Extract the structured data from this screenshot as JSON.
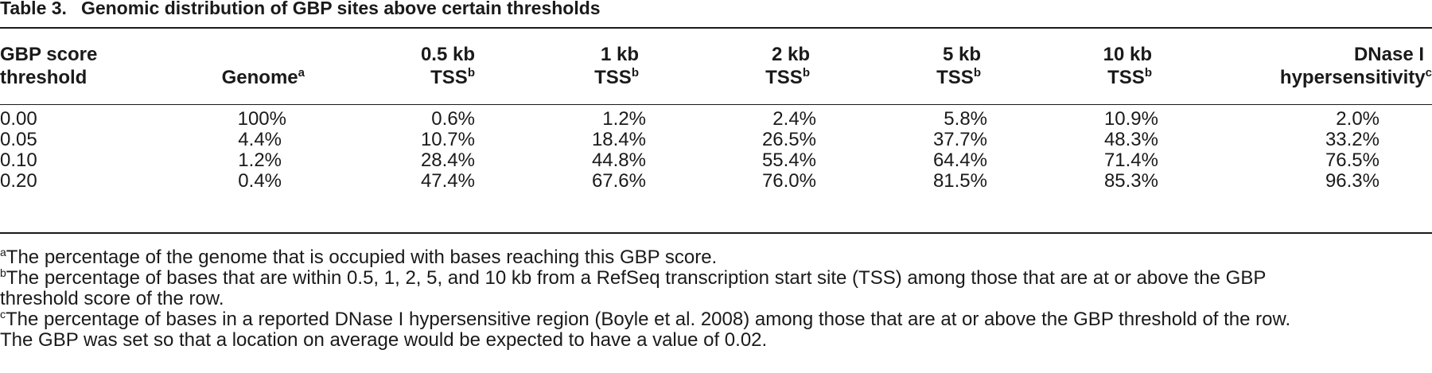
{
  "caption": {
    "label": "Table 3.",
    "title": "Genomic distribution of GBP sites above certain thresholds"
  },
  "headers": {
    "threshold": [
      "GBP score",
      "threshold"
    ],
    "genome": {
      "text": "Genome",
      "note": "a"
    },
    "tss05": {
      "line1": "0.5 kb",
      "line2": "TSS",
      "note": "b"
    },
    "tss1": {
      "line1": "1 kb",
      "line2": "TSS",
      "note": "b"
    },
    "tss2": {
      "line1": "2 kb",
      "line2": "TSS",
      "note": "b"
    },
    "tss5": {
      "line1": "5 kb",
      "line2": "TSS",
      "note": "b"
    },
    "tss10": {
      "line1": "10 kb",
      "line2": "TSS",
      "note": "b"
    },
    "dnase": {
      "line1": "DNase I",
      "line2": "hypersensitivity",
      "note": "c"
    }
  },
  "rows": [
    {
      "threshold": "0.00",
      "genome": "100%",
      "tss05": "0.6%",
      "tss1": "1.2%",
      "tss2": "2.4%",
      "tss5": "5.8%",
      "tss10": "10.9%",
      "dnase": "2.0%"
    },
    {
      "threshold": "0.05",
      "genome": "4.4%",
      "tss05": "10.7%",
      "tss1": "18.4%",
      "tss2": "26.5%",
      "tss5": "37.7%",
      "tss10": "48.3%",
      "dnase": "33.2%"
    },
    {
      "threshold": "0.10",
      "genome": "1.2%",
      "tss05": "28.4%",
      "tss1": "44.8%",
      "tss2": "55.4%",
      "tss5": "64.4%",
      "tss10": "71.4%",
      "dnase": "76.5%"
    },
    {
      "threshold": "0.20",
      "genome": "0.4%",
      "tss05": "47.4%",
      "tss1": "67.6%",
      "tss2": "76.0%",
      "tss5": "81.5%",
      "tss10": "85.3%",
      "dnase": "96.3%"
    }
  ],
  "footnotes": [
    {
      "mark": "a",
      "text": "The percentage of the genome that is occupied with bases reaching this GBP score."
    },
    {
      "mark": "b",
      "text": "The percentage of bases that are within 0.5, 1, 2, 5, and 10 kb from a RefSeq transcription start site (TSS) among those that are at or above the GBP"
    },
    {
      "mark": "",
      "text": "threshold score of the row."
    },
    {
      "mark": "c",
      "text": "The percentage of bases in a reported DNase I hypersensitive region (Boyle et al. 2008) among those that are at or above the GBP threshold of the row."
    },
    {
      "mark": "",
      "text": "The GBP was set so that a location on average would be expected to have a value of 0.02."
    }
  ]
}
